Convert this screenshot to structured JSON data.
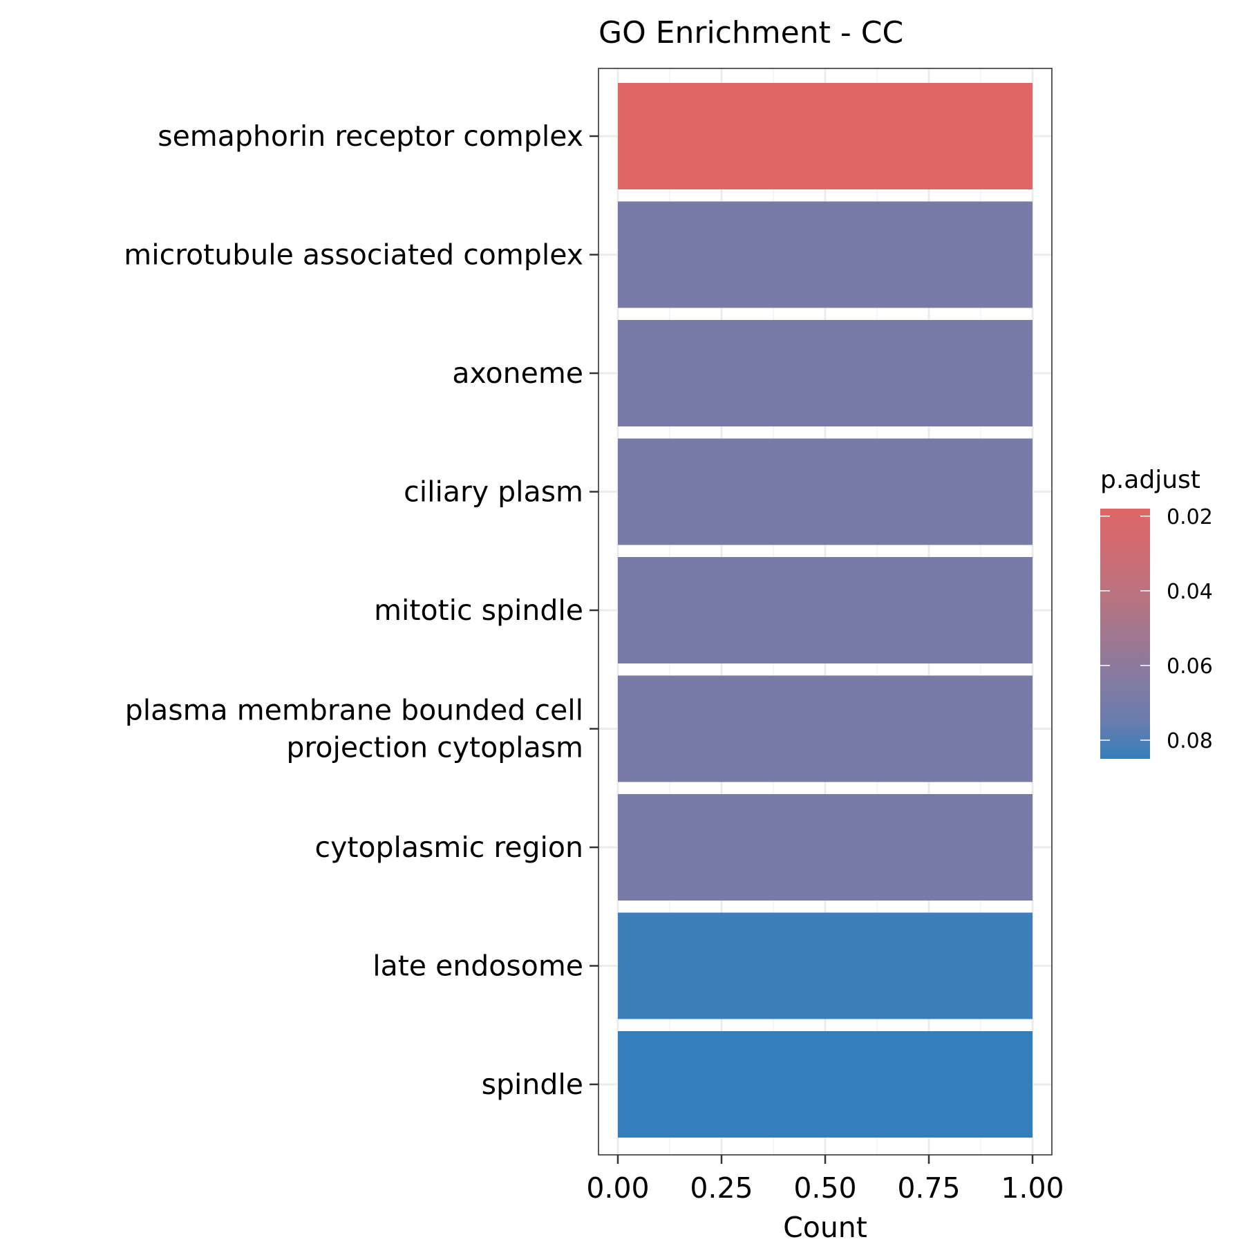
{
  "chart_data": {
    "type": "bar",
    "orientation": "horizontal",
    "title": "GO Enrichment - CC",
    "xlabel": "Count",
    "ylabel": "",
    "xlim": [
      0,
      1
    ],
    "x_ticks": [
      "0.00",
      "0.25",
      "0.50",
      "0.75",
      "1.00"
    ],
    "x_tick_values": [
      0,
      0.25,
      0.5,
      0.75,
      1.0
    ],
    "grid": true,
    "categories": [
      [
        "semaphorin receptor complex"
      ],
      [
        "microtubule associated complex"
      ],
      [
        "axoneme"
      ],
      [
        "ciliary plasm"
      ],
      [
        "mitotic spindle"
      ],
      [
        "plasma membrane bounded cell",
        "projection cytoplasm"
      ],
      [
        "cytoplasmic region"
      ],
      [
        "late endosome"
      ],
      [
        "spindle"
      ]
    ],
    "values": [
      1,
      1,
      1,
      1,
      1,
      1,
      1,
      1,
      1
    ],
    "p_adjust": [
      0.02,
      0.059,
      0.059,
      0.059,
      0.059,
      0.059,
      0.059,
      0.082,
      0.084
    ],
    "bar_colors": [
      "#E06666",
      "#777BA6",
      "#777BA6",
      "#777BA6",
      "#777BA6",
      "#777BA6",
      "#777BA6",
      "#3D7FBB",
      "#337EBB"
    ],
    "legend": {
      "title": "p.adjust",
      "placement": "right",
      "ticks": [
        "0.02",
        "0.04",
        "0.06",
        "0.08"
      ],
      "tick_values": [
        0.02,
        0.04,
        0.06,
        0.08
      ],
      "range": [
        0.018,
        0.085
      ],
      "color_low": "#E06666",
      "color_high": "#337EBB"
    }
  }
}
